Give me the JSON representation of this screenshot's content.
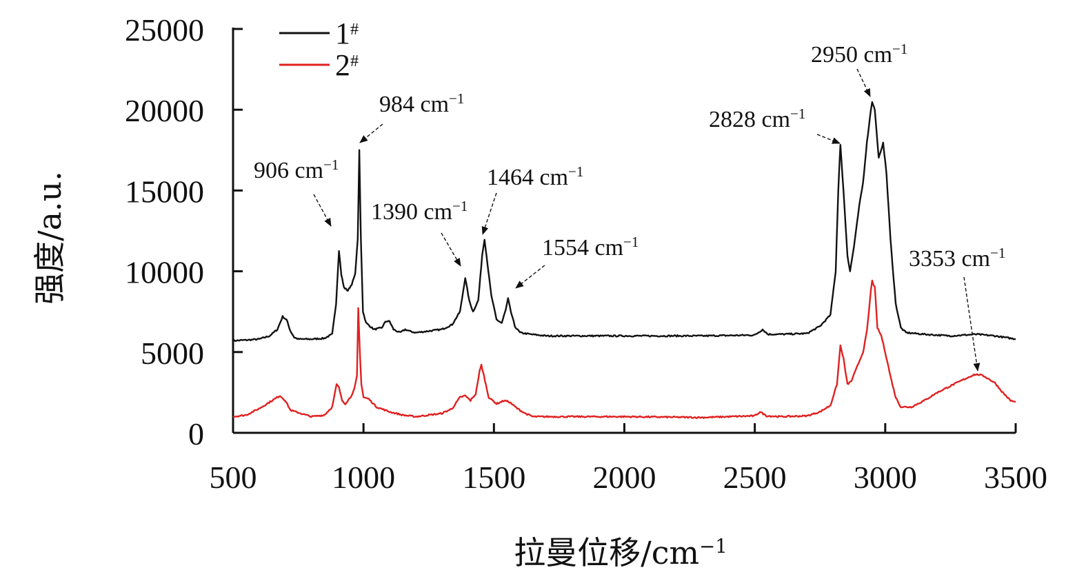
{
  "chart_data": {
    "type": "line",
    "xlabel": "拉曼位移/cm",
    "xlabel_superscript": "−1",
    "ylabel": "强度/a.u.",
    "xlim": [
      500,
      3500
    ],
    "ylim": [
      0,
      25000
    ],
    "x_ticks": [
      500,
      1000,
      1500,
      2000,
      2500,
      3000,
      3500
    ],
    "y_ticks": [
      0,
      5000,
      10000,
      15000,
      20000,
      25000
    ],
    "legend_position": "top-left",
    "grid": false,
    "series": [
      {
        "name": "1",
        "name_superscript": "#",
        "color": "#111111",
        "points": [
          [
            500,
            5700
          ],
          [
            560,
            5750
          ],
          [
            600,
            5800
          ],
          [
            640,
            6000
          ],
          [
            670,
            6400
          ],
          [
            690,
            7200
          ],
          [
            705,
            7000
          ],
          [
            720,
            6300
          ],
          [
            735,
            5900
          ],
          [
            750,
            5800
          ],
          [
            800,
            5800
          ],
          [
            850,
            5850
          ],
          [
            880,
            6100
          ],
          [
            895,
            8000
          ],
          [
            906,
            11300
          ],
          [
            915,
            9800
          ],
          [
            925,
            9000
          ],
          [
            940,
            8800
          ],
          [
            955,
            9200
          ],
          [
            968,
            9800
          ],
          [
            978,
            12000
          ],
          [
            984,
            17500
          ],
          [
            990,
            12000
          ],
          [
            998,
            7500
          ],
          [
            1010,
            6800
          ],
          [
            1040,
            6400
          ],
          [
            1070,
            6500
          ],
          [
            1085,
            6900
          ],
          [
            1100,
            6900
          ],
          [
            1115,
            6400
          ],
          [
            1140,
            6200
          ],
          [
            1160,
            6400
          ],
          [
            1175,
            6300
          ],
          [
            1200,
            6200
          ],
          [
            1250,
            6300
          ],
          [
            1300,
            6400
          ],
          [
            1340,
            6700
          ],
          [
            1370,
            7500
          ],
          [
            1390,
            9600
          ],
          [
            1405,
            8200
          ],
          [
            1420,
            7500
          ],
          [
            1440,
            8200
          ],
          [
            1455,
            11000
          ],
          [
            1464,
            12000
          ],
          [
            1475,
            10500
          ],
          [
            1490,
            8500
          ],
          [
            1510,
            7000
          ],
          [
            1530,
            6800
          ],
          [
            1545,
            7600
          ],
          [
            1554,
            8300
          ],
          [
            1565,
            7500
          ],
          [
            1580,
            6600
          ],
          [
            1600,
            6200
          ],
          [
            1640,
            6100
          ],
          [
            1700,
            6000
          ],
          [
            2000,
            6000
          ],
          [
            2300,
            6000
          ],
          [
            2500,
            6050
          ],
          [
            2530,
            6400
          ],
          [
            2550,
            6100
          ],
          [
            2600,
            6100
          ],
          [
            2700,
            6150
          ],
          [
            2750,
            6600
          ],
          [
            2790,
            7300
          ],
          [
            2810,
            10000
          ],
          [
            2820,
            15000
          ],
          [
            2828,
            17800
          ],
          [
            2840,
            15000
          ],
          [
            2855,
            11000
          ],
          [
            2865,
            10000
          ],
          [
            2880,
            11500
          ],
          [
            2900,
            14000
          ],
          [
            2915,
            15500
          ],
          [
            2930,
            18000
          ],
          [
            2945,
            20000
          ],
          [
            2950,
            20500
          ],
          [
            2960,
            20000
          ],
          [
            2975,
            17000
          ],
          [
            2985,
            17500
          ],
          [
            2992,
            18000
          ],
          [
            3005,
            16000
          ],
          [
            3020,
            12000
          ],
          [
            3040,
            8000
          ],
          [
            3060,
            6500
          ],
          [
            3080,
            6200
          ],
          [
            3150,
            6100
          ],
          [
            3250,
            6000
          ],
          [
            3350,
            6100
          ],
          [
            3420,
            6000
          ],
          [
            3500,
            5800
          ]
        ]
      },
      {
        "name": "2",
        "name_superscript": "#",
        "color": "#e02020",
        "points": [
          [
            500,
            1000
          ],
          [
            550,
            1100
          ],
          [
            600,
            1500
          ],
          [
            650,
            2000
          ],
          [
            680,
            2300
          ],
          [
            700,
            2000
          ],
          [
            720,
            1400
          ],
          [
            760,
            1200
          ],
          [
            800,
            1000
          ],
          [
            850,
            1100
          ],
          [
            880,
            1600
          ],
          [
            897,
            3000
          ],
          [
            906,
            2800
          ],
          [
            918,
            2000
          ],
          [
            930,
            1800
          ],
          [
            950,
            2200
          ],
          [
            965,
            2700
          ],
          [
            975,
            3500
          ],
          [
            980,
            7700
          ],
          [
            986,
            5000
          ],
          [
            992,
            3000
          ],
          [
            1000,
            2200
          ],
          [
            1020,
            2100
          ],
          [
            1050,
            1600
          ],
          [
            1100,
            1300
          ],
          [
            1150,
            1100
          ],
          [
            1200,
            1000
          ],
          [
            1250,
            1100
          ],
          [
            1300,
            1200
          ],
          [
            1340,
            1500
          ],
          [
            1370,
            2200
          ],
          [
            1390,
            2300
          ],
          [
            1410,
            2000
          ],
          [
            1430,
            2400
          ],
          [
            1445,
            3800
          ],
          [
            1452,
            4200
          ],
          [
            1462,
            3500
          ],
          [
            1480,
            2200
          ],
          [
            1510,
            1800
          ],
          [
            1540,
            2000
          ],
          [
            1560,
            1900
          ],
          [
            1590,
            1500
          ],
          [
            1620,
            1200
          ],
          [
            1650,
            1000
          ],
          [
            1700,
            1000
          ],
          [
            2000,
            1000
          ],
          [
            2300,
            950
          ],
          [
            2500,
            1050
          ],
          [
            2520,
            1300
          ],
          [
            2545,
            1050
          ],
          [
            2600,
            1000
          ],
          [
            2700,
            1050
          ],
          [
            2750,
            1300
          ],
          [
            2790,
            1700
          ],
          [
            2815,
            3000
          ],
          [
            2828,
            5400
          ],
          [
            2840,
            4600
          ],
          [
            2855,
            3000
          ],
          [
            2870,
            3200
          ],
          [
            2890,
            4000
          ],
          [
            2915,
            5000
          ],
          [
            2930,
            6300
          ],
          [
            2945,
            8800
          ],
          [
            2950,
            9400
          ],
          [
            2960,
            9000
          ],
          [
            2970,
            6500
          ],
          [
            2985,
            6000
          ],
          [
            3000,
            5000
          ],
          [
            3020,
            3500
          ],
          [
            3040,
            2200
          ],
          [
            3060,
            1600
          ],
          [
            3100,
            1600
          ],
          [
            3150,
            2000
          ],
          [
            3200,
            2500
          ],
          [
            3250,
            2900
          ],
          [
            3300,
            3300
          ],
          [
            3340,
            3600
          ],
          [
            3360,
            3600
          ],
          [
            3380,
            3500
          ],
          [
            3420,
            3100
          ],
          [
            3450,
            2500
          ],
          [
            3480,
            2000
          ],
          [
            3500,
            1900
          ]
        ]
      }
    ],
    "annotations": [
      {
        "label": "906 cm",
        "sup": "−1",
        "x": 906,
        "y": 11300
      },
      {
        "label": "984 cm",
        "sup": "−1",
        "x": 984,
        "y": 17500
      },
      {
        "label": "1390 cm",
        "sup": "−1",
        "x": 1390,
        "y": 9600
      },
      {
        "label": "1464 cm",
        "sup": "−1",
        "x": 1464,
        "y": 12000
      },
      {
        "label": "1554 cm",
        "sup": "−1",
        "x": 1554,
        "y": 8300
      },
      {
        "label": "2828 cm",
        "sup": "−1",
        "x": 2828,
        "y": 17800
      },
      {
        "label": "2950 cm",
        "sup": "−1",
        "x": 2950,
        "y": 20500
      },
      {
        "label": "3353 cm",
        "sup": "−1",
        "x": 3353,
        "y": 3600
      }
    ]
  }
}
